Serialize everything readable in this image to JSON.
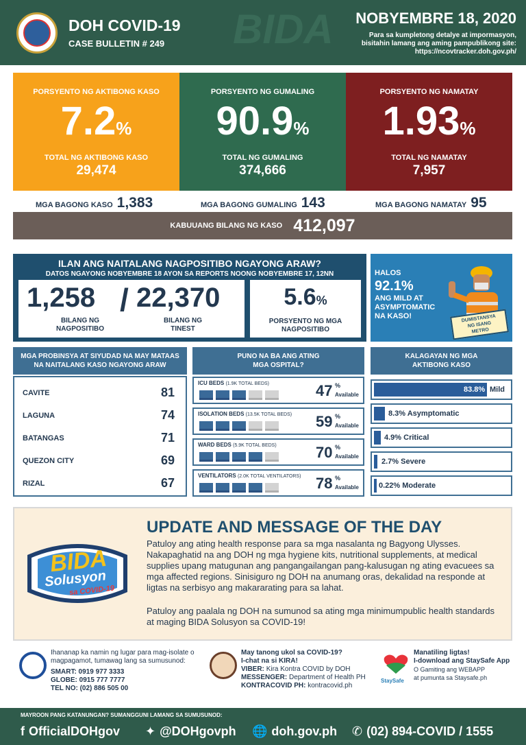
{
  "header": {
    "title": "DOH COVID-19",
    "bulletin": "CASE BULLETIN # 249",
    "date": "NOBYEMBRE 18, 2020",
    "note_line1": "Para sa kumpletong detalye at impormasyon,",
    "note_line2": "bisitahin lamang ang aming pampublikong site:",
    "note_url": "https://ncovtracker.doh.gov.ph/"
  },
  "stats": {
    "active": {
      "label": "PORSYENTO NG AKTIBONG KASO",
      "percent": "7.2",
      "total_label": "TOTAL NG AKTIBONG KASO",
      "total": "29,474",
      "color": "#f7a21b"
    },
    "recovered": {
      "label": "PORSYENTO NG GUMALING",
      "percent": "90.9",
      "total_label": "TOTAL NG GUMALING",
      "total": "374,666",
      "color": "#2f6b4f"
    },
    "deaths": {
      "label": "PORSYENTO NG NAMATAY",
      "percent": "1.93",
      "total_label": "TOTAL NG NAMATAY",
      "total": "7,957",
      "color": "#7e1f20"
    },
    "percent_sign": "%"
  },
  "new": {
    "cases_label": "MGA BAGONG KASO",
    "cases": "1,383",
    "recovered_label": "MGA BAGONG GUMALING",
    "recovered": "143",
    "deaths_label": "MGA BAGONG NAMATAY",
    "deaths": "95"
  },
  "total": {
    "label": "KABUUANG BILANG NG KASO",
    "value": "412,097"
  },
  "today": {
    "title": "ILAN ANG NAITALANG NAGPOSITIBO NGAYONG ARAW?",
    "subtitle": "DATOS NGAYONG NOBYEMBRE 18 AYON SA REPORTS NOONG NOBYEMBRE 17, 12NN",
    "positive": "1,258",
    "positive_cap1": "BILANG NG",
    "positive_cap2": "NAGPOSITIBO",
    "slash": "/",
    "tested": "22,370",
    "tested_cap1": "BILANG NG",
    "tested_cap2": "TINEST",
    "rate": "5.6",
    "rate_cap1": "PORSYENTO NG MGA",
    "rate_cap2": "NAGPOSITIBO"
  },
  "worker": {
    "line1": "HALOS",
    "percent": "92.1%",
    "line2": "ANG MILD AT",
    "line3": "ASYMPTOMATIC",
    "line4": "NA KASO!",
    "sign1": "DUMISTANSYA",
    "sign2": "NG ISANG",
    "sign3": "METRO"
  },
  "provinces": {
    "title_line1": "MGA PROBINSYA AT SIYUDAD NA MAY MATAAS",
    "title_line2": "NA NAITALANG KASO NGAYONG ARAW",
    "rows": [
      {
        "name": "CAVITE",
        "value": "81"
      },
      {
        "name": "LAGUNA",
        "value": "74"
      },
      {
        "name": "BATANGAS",
        "value": "71"
      },
      {
        "name": "QUEZON CITY",
        "value": "69"
      },
      {
        "name": "RIZAL",
        "value": "67"
      }
    ]
  },
  "hospitals": {
    "title_line1": "PUNO NA BA ANG ATING",
    "title_line2": "MGA OSPITAL?",
    "available": "Available",
    "rows": [
      {
        "name": "ICU BEDS",
        "sub": "(1.9K TOTAL BEDS)",
        "value": "47",
        "filled": 3
      },
      {
        "name": "ISOLATION BEDS",
        "sub": "(13.5K TOTAL BEDS)",
        "value": "59",
        "filled": 3
      },
      {
        "name": "WARD BEDS",
        "sub": "(5.9K TOTAL BEDS)",
        "value": "70",
        "filled": 4
      },
      {
        "name": "VENTILATORS",
        "sub": "(2.0K TOTAL VENTILATORS)",
        "value": "78",
        "filled": 4
      }
    ]
  },
  "status": {
    "title_line1": "KALAGAYAN NG MGA",
    "title_line2": "AKTIBONG KASO",
    "rows": [
      {
        "label": "Mild",
        "value": "83.8%",
        "fraction": 0.838
      },
      {
        "label": "Asymptomatic",
        "value": "8.3%",
        "fraction": 0.083
      },
      {
        "label": "Critical",
        "value": "4.9%",
        "fraction": 0.049
      },
      {
        "label": "Severe",
        "value": "2.7%",
        "fraction": 0.027
      },
      {
        "label": "Moderate",
        "value": "0.22%",
        "fraction": 0.0022
      }
    ]
  },
  "update": {
    "title": "UPDATE AND MESSAGE OF THE DAY",
    "para1": "Patuloy ang ating health response para sa mga nasalanta ng Bagyong Ulysses. Nakapaghatid na ang DOH ng mga hygiene kits, nutritional supplements, at medical supplies upang matugunan ang pangangailangan pang-kalusugan ng ating evacuees sa mga affected regions. Sinisiguro ng DOH na anumang oras, dekalidad na responde at ligtas na serbisyo ang makararating para sa lahat.",
    "para2": "Patuloy ang paalala ng DOH na sumunod sa ating mga minimumpublic health standards at maging BIDA Solusyon sa COVID-19!",
    "logo_text1": "BIDA",
    "logo_text2": "Solusyon",
    "logo_text3": "sa COVID-19"
  },
  "contacts": {
    "isolate_line1": "Ihananap ka namin ng lugar para mag-isolate o",
    "isolate_line2": "magpagamot, tumawag lang sa sumusunod:",
    "smart": "SMART: 0919 977 3333",
    "globe": "GLOBE: 0915 777 7777",
    "tel": "TEL NO: (02) 886 505 00",
    "kira_line1": "May tanong ukol sa COVID-19?",
    "kira_line2": "I-chat na si KIRA!",
    "viber_label": "VIBER:",
    "viber": "Kira Kontra COVID by DOH",
    "messenger_label": "MESSENGER:",
    "messenger": "Department of Health PH",
    "kontra_label": "KONTRACOVID PH:",
    "kontra": "kontracovid.ph",
    "stay_line1": "Manatiling ligtas!",
    "stay_line2": "I-download ang StaySafe App",
    "stay_line3": "O Gamiting ang WEBAPP",
    "stay_line4": "at pumunta sa Staysafe.ph",
    "stay_logo": "StaySafe"
  },
  "footer": {
    "question": "MAYROON PANG KATANUNGAN? SUMANGGUNI LAMANG SA SUMUSUNOD:",
    "facebook": "OfficialDOHgov",
    "twitter": "@DOHgovph",
    "web": "doh.gov.ph",
    "phone": "(02) 894-COVID  /  1555"
  },
  "colors": {
    "header": "#2f5b4b",
    "navy": "#1f4f6e",
    "steel": "#3f6f93"
  }
}
